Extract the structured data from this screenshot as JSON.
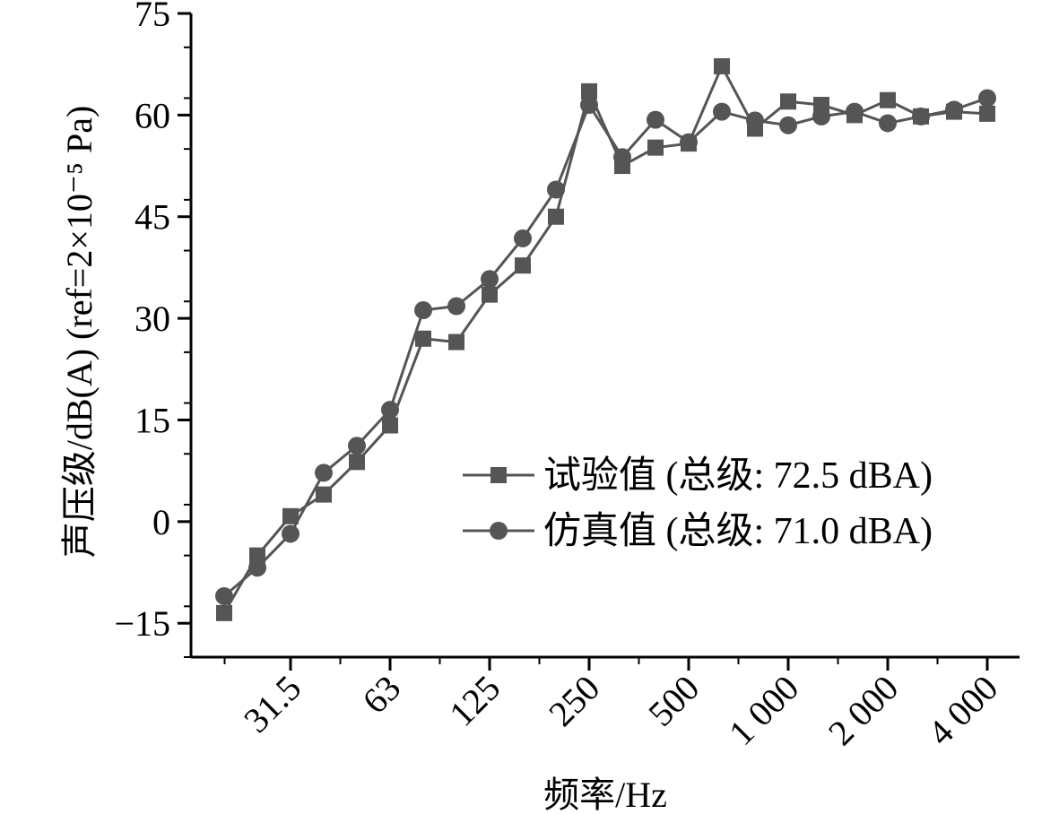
{
  "chart_data": {
    "type": "line",
    "title": "",
    "xlabel": "频率/Hz",
    "ylabel": "声压级/dB(A) (ref=2×10⁻⁵ Pa)",
    "xscale": "log (1/3 octave bands)",
    "ylim": [
      -20,
      75
    ],
    "yticks": [
      -15,
      0,
      15,
      30,
      45,
      60,
      75
    ],
    "ytick_labels": [
      "−15",
      "0",
      "15",
      "30",
      "45",
      "60",
      "75"
    ],
    "xtick_labels": [
      "31.5",
      "63",
      "125",
      "250",
      "500",
      "1 000",
      "2 000",
      "4 000"
    ],
    "x": [
      20,
      25,
      31.5,
      40,
      50,
      63,
      80,
      100,
      125,
      160,
      200,
      250,
      315,
      400,
      500,
      630,
      800,
      1000,
      1250,
      1600,
      2000,
      2500,
      3150,
      4000
    ],
    "legend_position": "center-right",
    "series": [
      {
        "name": "试验值 (总级: 72.5 dBA)",
        "marker": "square",
        "color": "#555555",
        "values": [
          -13.5,
          -5.0,
          0.8,
          4.0,
          8.8,
          14.2,
          27.0,
          26.5,
          33.5,
          37.8,
          45.0,
          63.5,
          52.5,
          55.2,
          55.8,
          67.2,
          58.0,
          62.0,
          61.5,
          60.0,
          62.2,
          59.8,
          60.5,
          60.2
        ]
      },
      {
        "name": "仿真值 (总级: 71.0 dBA)",
        "marker": "circle",
        "color": "#555555",
        "values": [
          -11.0,
          -6.8,
          -1.8,
          7.2,
          11.2,
          16.5,
          31.2,
          31.8,
          35.8,
          41.8,
          49.0,
          61.5,
          53.8,
          59.3,
          56.0,
          60.5,
          59.2,
          58.5,
          59.8,
          60.5,
          58.8,
          59.8,
          60.8,
          62.5
        ]
      }
    ]
  }
}
